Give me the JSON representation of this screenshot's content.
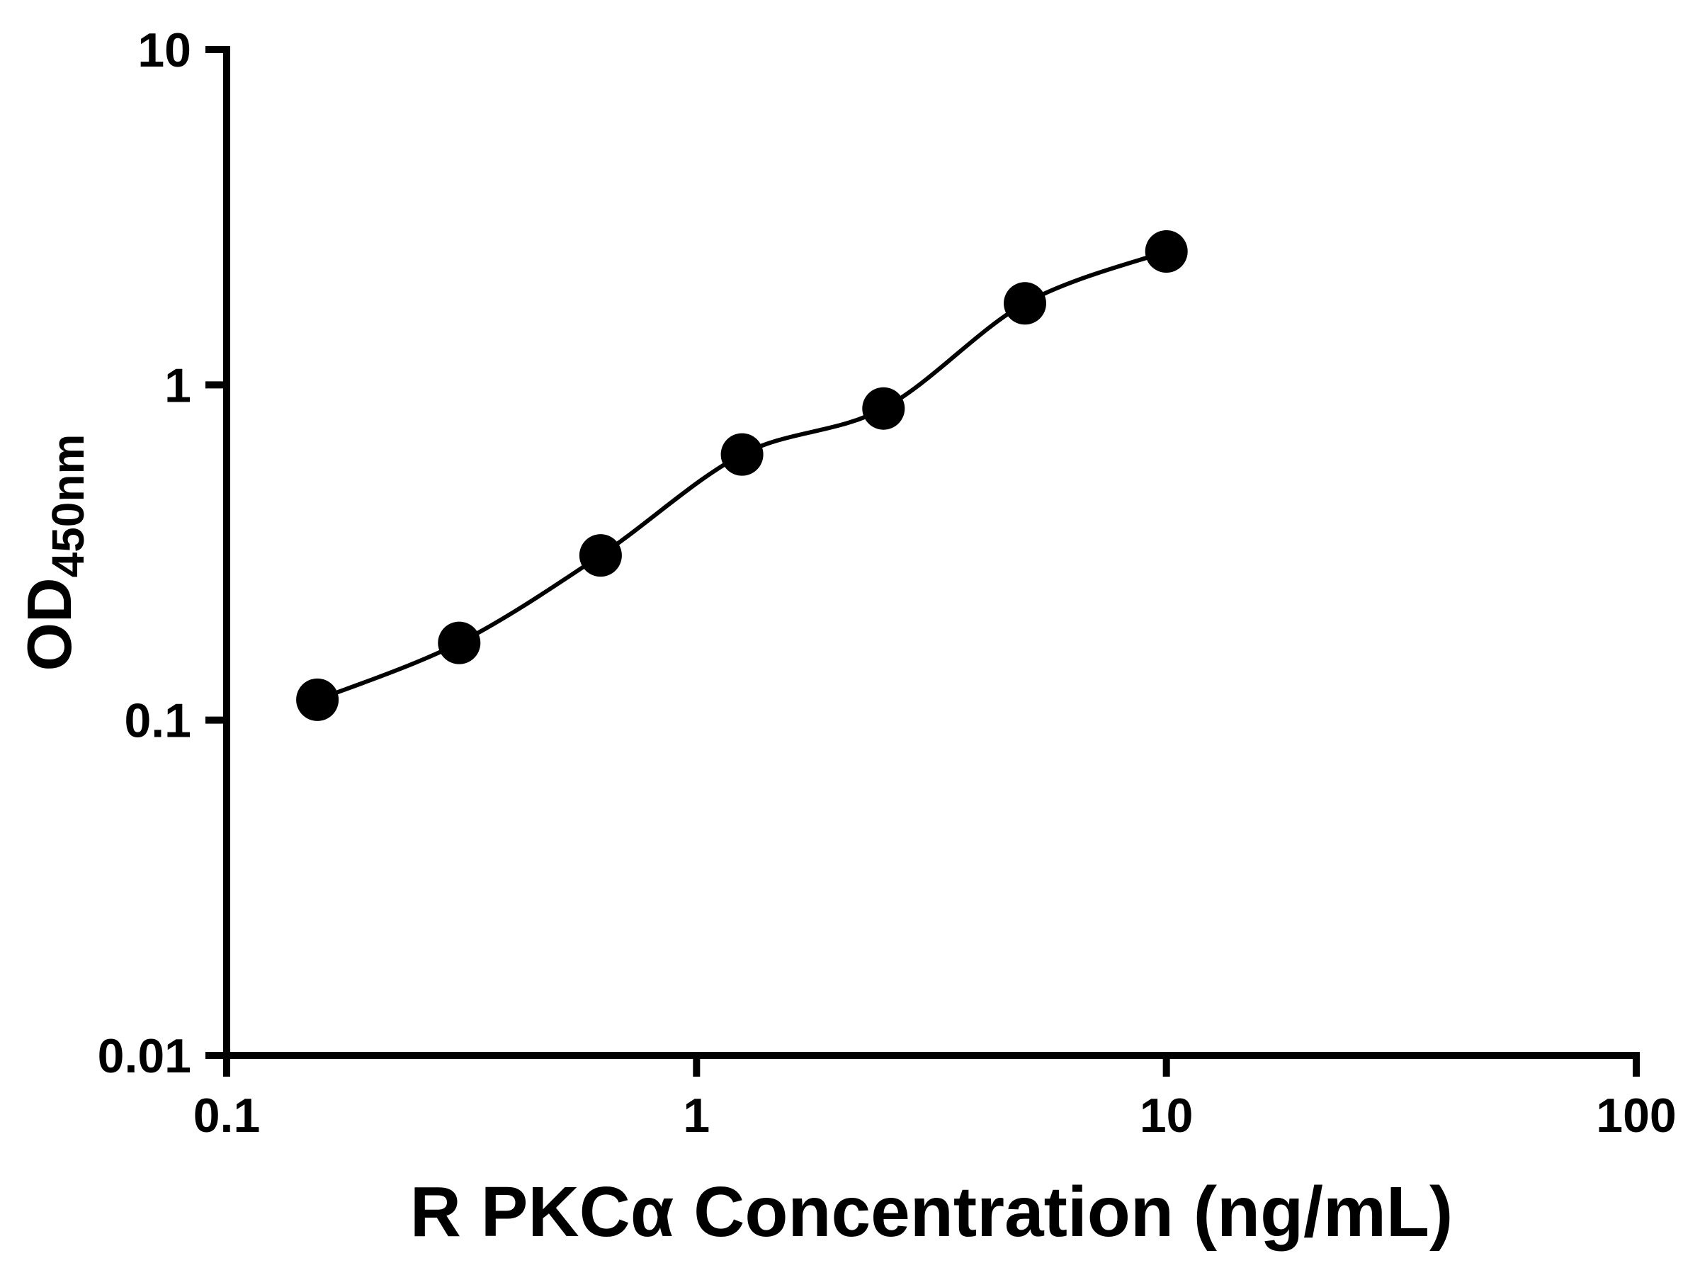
{
  "chart_data": {
    "type": "scatter",
    "curve": "smooth-fit-line",
    "x": [
      0.156,
      0.3125,
      0.625,
      1.25,
      2.5,
      5,
      10
    ],
    "y": [
      0.115,
      0.17,
      0.31,
      0.62,
      0.85,
      1.75,
      2.5
    ],
    "xlabel": "R PKCα Concentration (ng/mL)",
    "ylabel_main": "OD",
    "ylabel_sub": "450nm",
    "x_scale": "log",
    "y_scale": "log",
    "xlim": [
      0.1,
      100
    ],
    "ylim": [
      0.01,
      10
    ],
    "x_ticks": [
      {
        "value": 0.1,
        "label": "0.1"
      },
      {
        "value": 1,
        "label": "1"
      },
      {
        "value": 10,
        "label": "10"
      },
      {
        "value": 100,
        "label": "100"
      }
    ],
    "y_ticks": [
      {
        "value": 0.01,
        "label": "0.01"
      },
      {
        "value": 0.1,
        "label": "0.1"
      },
      {
        "value": 1,
        "label": "1"
      },
      {
        "value": 10,
        "label": "10"
      }
    ],
    "grid": "off",
    "legend": "none",
    "marker_color": "#000000",
    "line_color": "#000000",
    "axis_color": "#000000",
    "background": "#ffffff"
  }
}
